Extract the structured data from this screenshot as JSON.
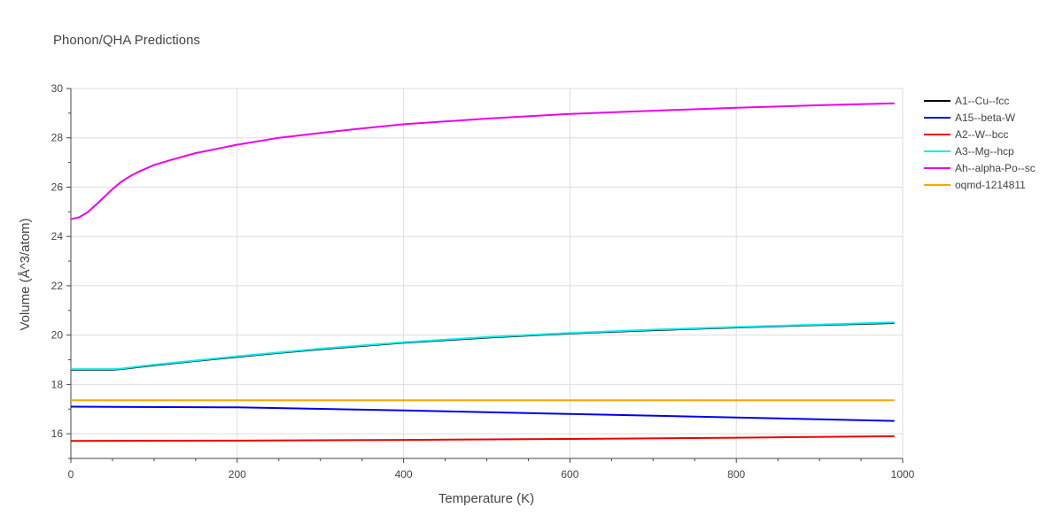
{
  "chart_data": {
    "type": "line",
    "title": "Phonon/QHA Predictions",
    "xlabel": "Temperature (K)",
    "ylabel": "Volume (Å^3/atom)",
    "xlim": [
      0,
      1000
    ],
    "ylim": [
      15,
      30
    ],
    "xticks": [
      0,
      200,
      400,
      600,
      800,
      1000
    ],
    "yticks": [
      16,
      18,
      20,
      22,
      24,
      26,
      28,
      30
    ],
    "xtick_labels": [
      "0",
      "200",
      "400",
      "600",
      "800",
      "1000"
    ],
    "ytick_labels": [
      "16",
      "18",
      "20",
      "22",
      "24",
      "26",
      "28",
      "30"
    ],
    "grid": true,
    "legend_position": "right",
    "series": [
      {
        "name": "A1--Cu--fcc",
        "color": "#000000",
        "x": [
          0,
          10,
          20,
          30,
          40,
          50,
          60,
          80,
          100,
          150,
          200,
          250,
          300,
          400,
          500,
          600,
          700,
          800,
          900,
          990
        ],
        "y": [
          18.6,
          18.6,
          18.6,
          18.6,
          18.6,
          18.6,
          18.62,
          18.7,
          18.78,
          18.95,
          19.12,
          19.28,
          19.43,
          19.69,
          19.9,
          20.07,
          20.2,
          20.31,
          20.41,
          20.49
        ]
      },
      {
        "name": "A15--beta-W",
        "color": "#0000ee",
        "x": [
          0,
          200,
          400,
          600,
          800,
          990
        ],
        "y": [
          17.1,
          17.07,
          16.95,
          16.8,
          16.66,
          16.52
        ]
      },
      {
        "name": "A2--W--bcc",
        "color": "#ee0000",
        "x": [
          0,
          200,
          400,
          600,
          800,
          990
        ],
        "y": [
          15.71,
          15.72,
          15.75,
          15.79,
          15.84,
          15.9
        ]
      },
      {
        "name": "A3--Mg--hcp",
        "color": "#00eeee",
        "x": [
          0,
          10,
          20,
          30,
          40,
          50,
          60,
          80,
          100,
          150,
          200,
          250,
          300,
          400,
          500,
          600,
          700,
          800,
          900,
          990
        ],
        "y": [
          18.62,
          18.62,
          18.62,
          18.62,
          18.62,
          18.62,
          18.64,
          18.72,
          18.8,
          18.97,
          19.14,
          19.3,
          19.45,
          19.71,
          19.92,
          20.09,
          20.22,
          20.33,
          20.43,
          20.52
        ]
      },
      {
        "name": "Ah--alpha-Po--sc",
        "color": "#ee00ee",
        "x": [
          0,
          10,
          20,
          30,
          40,
          50,
          60,
          70,
          80,
          100,
          120,
          150,
          200,
          250,
          300,
          350,
          400,
          500,
          600,
          700,
          800,
          900,
          990
        ],
        "y": [
          24.7,
          24.78,
          24.98,
          25.28,
          25.6,
          25.92,
          26.2,
          26.42,
          26.6,
          26.9,
          27.1,
          27.38,
          27.72,
          28.0,
          28.2,
          28.38,
          28.55,
          28.78,
          28.97,
          29.1,
          29.22,
          29.32,
          29.4
        ]
      },
      {
        "name": "oqmd-1214811",
        "color": "#ffa500",
        "x": [
          0,
          200,
          400,
          600,
          800,
          990
        ],
        "y": [
          17.36,
          17.36,
          17.36,
          17.36,
          17.36,
          17.36
        ]
      }
    ]
  }
}
